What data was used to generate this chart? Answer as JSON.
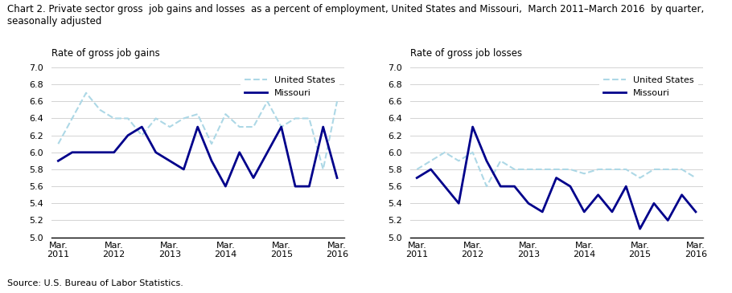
{
  "title_line1": "Chart 2. Private sector gross  job gains and losses  as a percent of employment, United States and Missouri,  March 2011–March 2016  by quarter,",
  "title_line2": "seasonally adjusted",
  "title_fontsize": 8.5,
  "source": "Source: U.S. Bureau of Labor Statistics.",
  "left_ylabel": "Rate of gross job gains",
  "right_ylabel": "Rate of gross job losses",
  "xtick_labels": [
    "Mar.\n2011",
    "Mar.\n2012",
    "Mar.\n2013",
    "Mar.\n2014",
    "Mar.\n2015",
    "Mar.\n2016"
  ],
  "xtick_positions": [
    0,
    4,
    8,
    12,
    16,
    20
  ],
  "ylim": [
    5.0,
    7.0
  ],
  "yticks": [
    5.0,
    5.2,
    5.4,
    5.6,
    5.8,
    6.0,
    6.2,
    6.4,
    6.6,
    6.8,
    7.0
  ],
  "gains_us": [
    6.1,
    6.4,
    6.7,
    6.5,
    6.4,
    6.4,
    6.2,
    6.4,
    6.3,
    6.4,
    6.45,
    6.1,
    6.45,
    6.3,
    6.3,
    6.6,
    6.3,
    6.4,
    6.4,
    5.8,
    6.6
  ],
  "gains_mo": [
    5.9,
    6.0,
    6.0,
    6.0,
    6.0,
    6.2,
    6.3,
    6.0,
    5.9,
    5.8,
    6.3,
    5.9,
    5.6,
    6.0,
    5.7,
    6.0,
    6.3,
    5.6,
    5.6,
    6.3,
    5.7
  ],
  "losses_us": [
    5.8,
    5.9,
    6.0,
    5.9,
    6.0,
    5.6,
    5.9,
    5.8,
    5.8,
    5.8,
    5.8,
    5.8,
    5.75,
    5.8,
    5.8,
    5.8,
    5.7,
    5.8,
    5.8,
    5.8,
    5.7
  ],
  "losses_mo": [
    5.7,
    5.8,
    5.6,
    5.4,
    6.3,
    5.9,
    5.6,
    5.6,
    5.4,
    5.3,
    5.7,
    5.6,
    5.3,
    5.5,
    5.3,
    5.6,
    5.1,
    5.4,
    5.2,
    5.5,
    5.3
  ],
  "us_color": "#ADD8E6",
  "mo_color": "#00008B",
  "us_lw": 1.5,
  "mo_lw": 2.0,
  "legend_fontsize": 8,
  "tick_fontsize": 8,
  "ylabel_fontsize": 8.5
}
